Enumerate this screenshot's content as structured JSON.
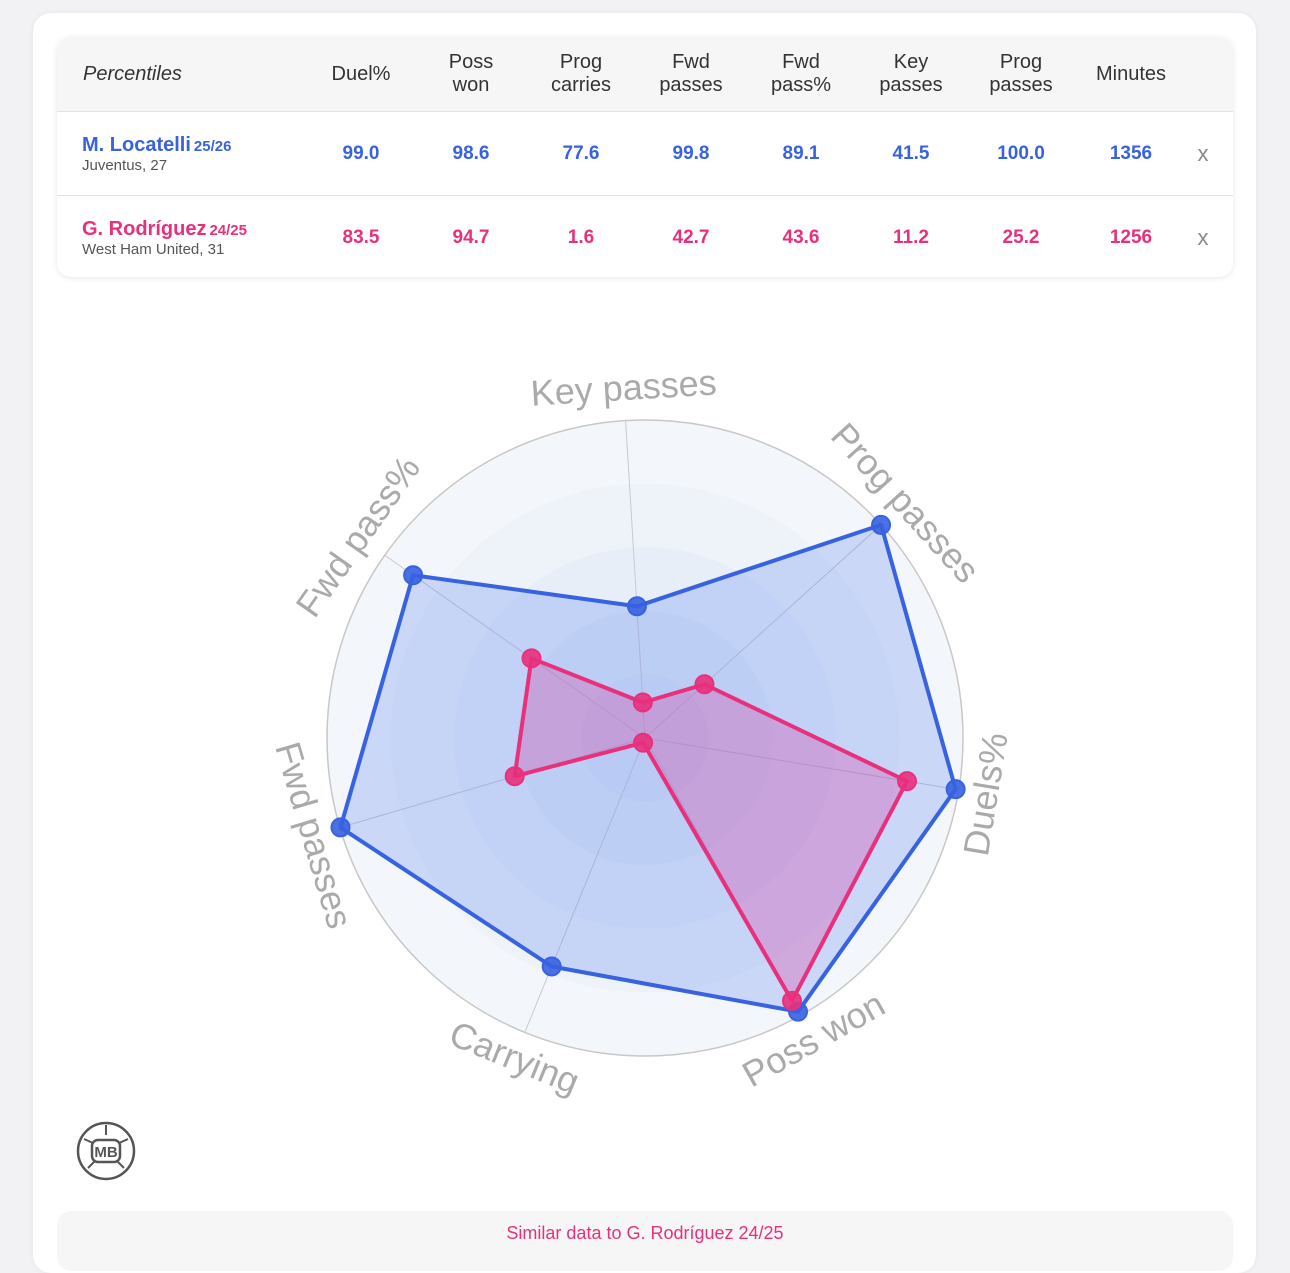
{
  "table": {
    "header_label": "Percentiles",
    "columns": [
      "Duel%",
      "Poss\nwon",
      "Prog\ncarries",
      "Fwd\npasses",
      "Fwd\npass%",
      "Key\npasses",
      "Prog\npasses",
      "Minutes"
    ],
    "rows": [
      {
        "name": "M. Locatelli",
        "season": "25/26",
        "club": "Juventus, 27",
        "values": [
          "99.0",
          "98.6",
          "77.6",
          "99.8",
          "89.1",
          "41.5",
          "100.0",
          "1356"
        ],
        "remove_label": "x",
        "color": "#3762e0"
      },
      {
        "name": "G. Rodríguez",
        "season": "24/25",
        "club": "West Ham United, 31",
        "values": [
          "83.5",
          "94.7",
          "1.6",
          "42.7",
          "43.6",
          "11.2",
          "25.2",
          "1256"
        ],
        "remove_label": "x",
        "color": "#e8307c"
      }
    ]
  },
  "chart_data": {
    "type": "radar",
    "axes": [
      "Key passes",
      "Prog passes",
      "Duels%",
      "Poss won",
      "Carrying",
      "Fwd passes",
      "Fwd pass%"
    ],
    "range": [
      0,
      100
    ],
    "series": [
      {
        "name": "M. Locatelli 25/26",
        "color": "#3762e0",
        "values": [
          41.5,
          100.0,
          99.0,
          98.6,
          77.6,
          99.8,
          89.1
        ]
      },
      {
        "name": "G. Rodríguez 24/25",
        "color": "#e8307c",
        "values": [
          11.2,
          25.2,
          83.5,
          94.7,
          1.6,
          42.7,
          43.6
        ]
      }
    ]
  },
  "logo": {
    "text": "MB"
  },
  "footer": {
    "similar_text": "Similar data to G. Rodríguez 24/25"
  }
}
